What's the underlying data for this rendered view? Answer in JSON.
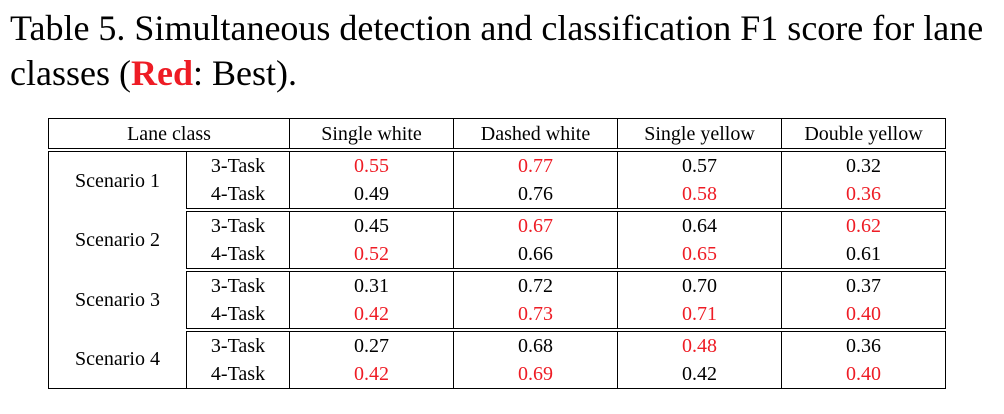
{
  "caption": {
    "prefix": "Table 5. Simultaneous detection and classification F1 score for lane classes (",
    "highlight": "Red",
    "suffix": ": Best)."
  },
  "highlight_color": "#ee1c25",
  "table": {
    "header": [
      "Lane class",
      "Single white",
      "Dashed white",
      "Single yellow",
      "Double yellow"
    ],
    "rows": [
      {
        "label": "Scenario 1",
        "tasks": [
          {
            "task": "3-Task",
            "cells": [
              {
                "text": "0.55",
                "best": true
              },
              {
                "text": "0.77",
                "best": true
              },
              {
                "text": "0.57",
                "best": false
              },
              {
                "text": "0.32",
                "best": false
              }
            ]
          },
          {
            "task": "4-Task",
            "cells": [
              {
                "text": "0.49",
                "best": false
              },
              {
                "text": "0.76",
                "best": false
              },
              {
                "text": "0.58",
                "best": true
              },
              {
                "text": "0.36",
                "best": true
              }
            ]
          }
        ]
      },
      {
        "label": "Scenario 2",
        "tasks": [
          {
            "task": "3-Task",
            "cells": [
              {
                "text": "0.45",
                "best": false
              },
              {
                "text": "0.67",
                "best": true
              },
              {
                "text": "0.64",
                "best": false
              },
              {
                "text": "0.62",
                "best": true
              }
            ]
          },
          {
            "task": "4-Task",
            "cells": [
              {
                "text": "0.52",
                "best": true
              },
              {
                "text": "0.66",
                "best": false
              },
              {
                "text": "0.65",
                "best": true
              },
              {
                "text": "0.61",
                "best": false
              }
            ]
          }
        ]
      },
      {
        "label": "Scenario 3",
        "tasks": [
          {
            "task": "3-Task",
            "cells": [
              {
                "text": "0.31",
                "best": false
              },
              {
                "text": "0.72",
                "best": false
              },
              {
                "text": "0.70",
                "best": false
              },
              {
                "text": "0.37",
                "best": false
              }
            ]
          },
          {
            "task": "4-Task",
            "cells": [
              {
                "text": "0.42",
                "best": true
              },
              {
                "text": "0.73",
                "best": true
              },
              {
                "text": "0.71",
                "best": true
              },
              {
                "text": "0.40",
                "best": true
              }
            ]
          }
        ]
      },
      {
        "label": "Scenario 4",
        "tasks": [
          {
            "task": "3-Task",
            "cells": [
              {
                "text": "0.27",
                "best": false
              },
              {
                "text": "0.68",
                "best": false
              },
              {
                "text": "0.48",
                "best": true
              },
              {
                "text": "0.36",
                "best": false
              }
            ]
          },
          {
            "task": "4-Task",
            "cells": [
              {
                "text": "0.42",
                "best": true
              },
              {
                "text": "0.69",
                "best": true
              },
              {
                "text": "0.42",
                "best": false
              },
              {
                "text": "0.40",
                "best": true
              }
            ]
          }
        ]
      }
    ]
  }
}
